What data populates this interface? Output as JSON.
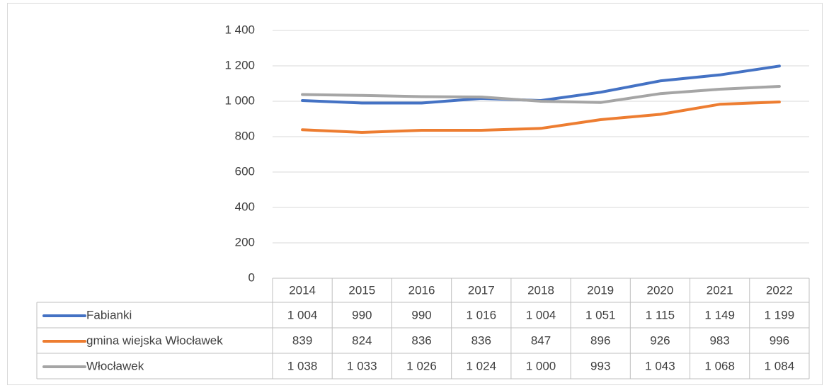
{
  "chart_data": {
    "type": "line",
    "categories": [
      "2014",
      "2015",
      "2016",
      "2017",
      "2018",
      "2019",
      "2020",
      "2021",
      "2022"
    ],
    "series": [
      {
        "name": "Fabianki",
        "color": "#4472c4",
        "values": [
          1004,
          990,
          990,
          1016,
          1004,
          1051,
          1115,
          1149,
          1199
        ],
        "value_labels": [
          "1 004",
          "990",
          "990",
          "1 016",
          "1 004",
          "1 051",
          "1 115",
          "1 149",
          "1 199"
        ]
      },
      {
        "name": "gmina wiejska Włocławek",
        "color": "#ed7d31",
        "values": [
          839,
          824,
          836,
          836,
          847,
          896,
          926,
          983,
          996
        ],
        "value_labels": [
          "839",
          "824",
          "836",
          "836",
          "847",
          "896",
          "926",
          "983",
          "996"
        ]
      },
      {
        "name": "Włocławek",
        "color": "#a5a5a5",
        "values": [
          1038,
          1033,
          1026,
          1024,
          1000,
          993,
          1043,
          1068,
          1084
        ],
        "value_labels": [
          "1 038",
          "1 033",
          "1 026",
          "1 024",
          "1 000",
          "993",
          "1 043",
          "1 068",
          "1 084"
        ]
      }
    ],
    "ylim": [
      0,
      1400
    ],
    "yticks": [
      0,
      200,
      400,
      600,
      800,
      {
        "value": 1000,
        "label": "1 000"
      },
      {
        "value": 1200,
        "label": "1 200"
      },
      {
        "value": 1400,
        "label": "1 400"
      }
    ],
    "grid": true
  }
}
